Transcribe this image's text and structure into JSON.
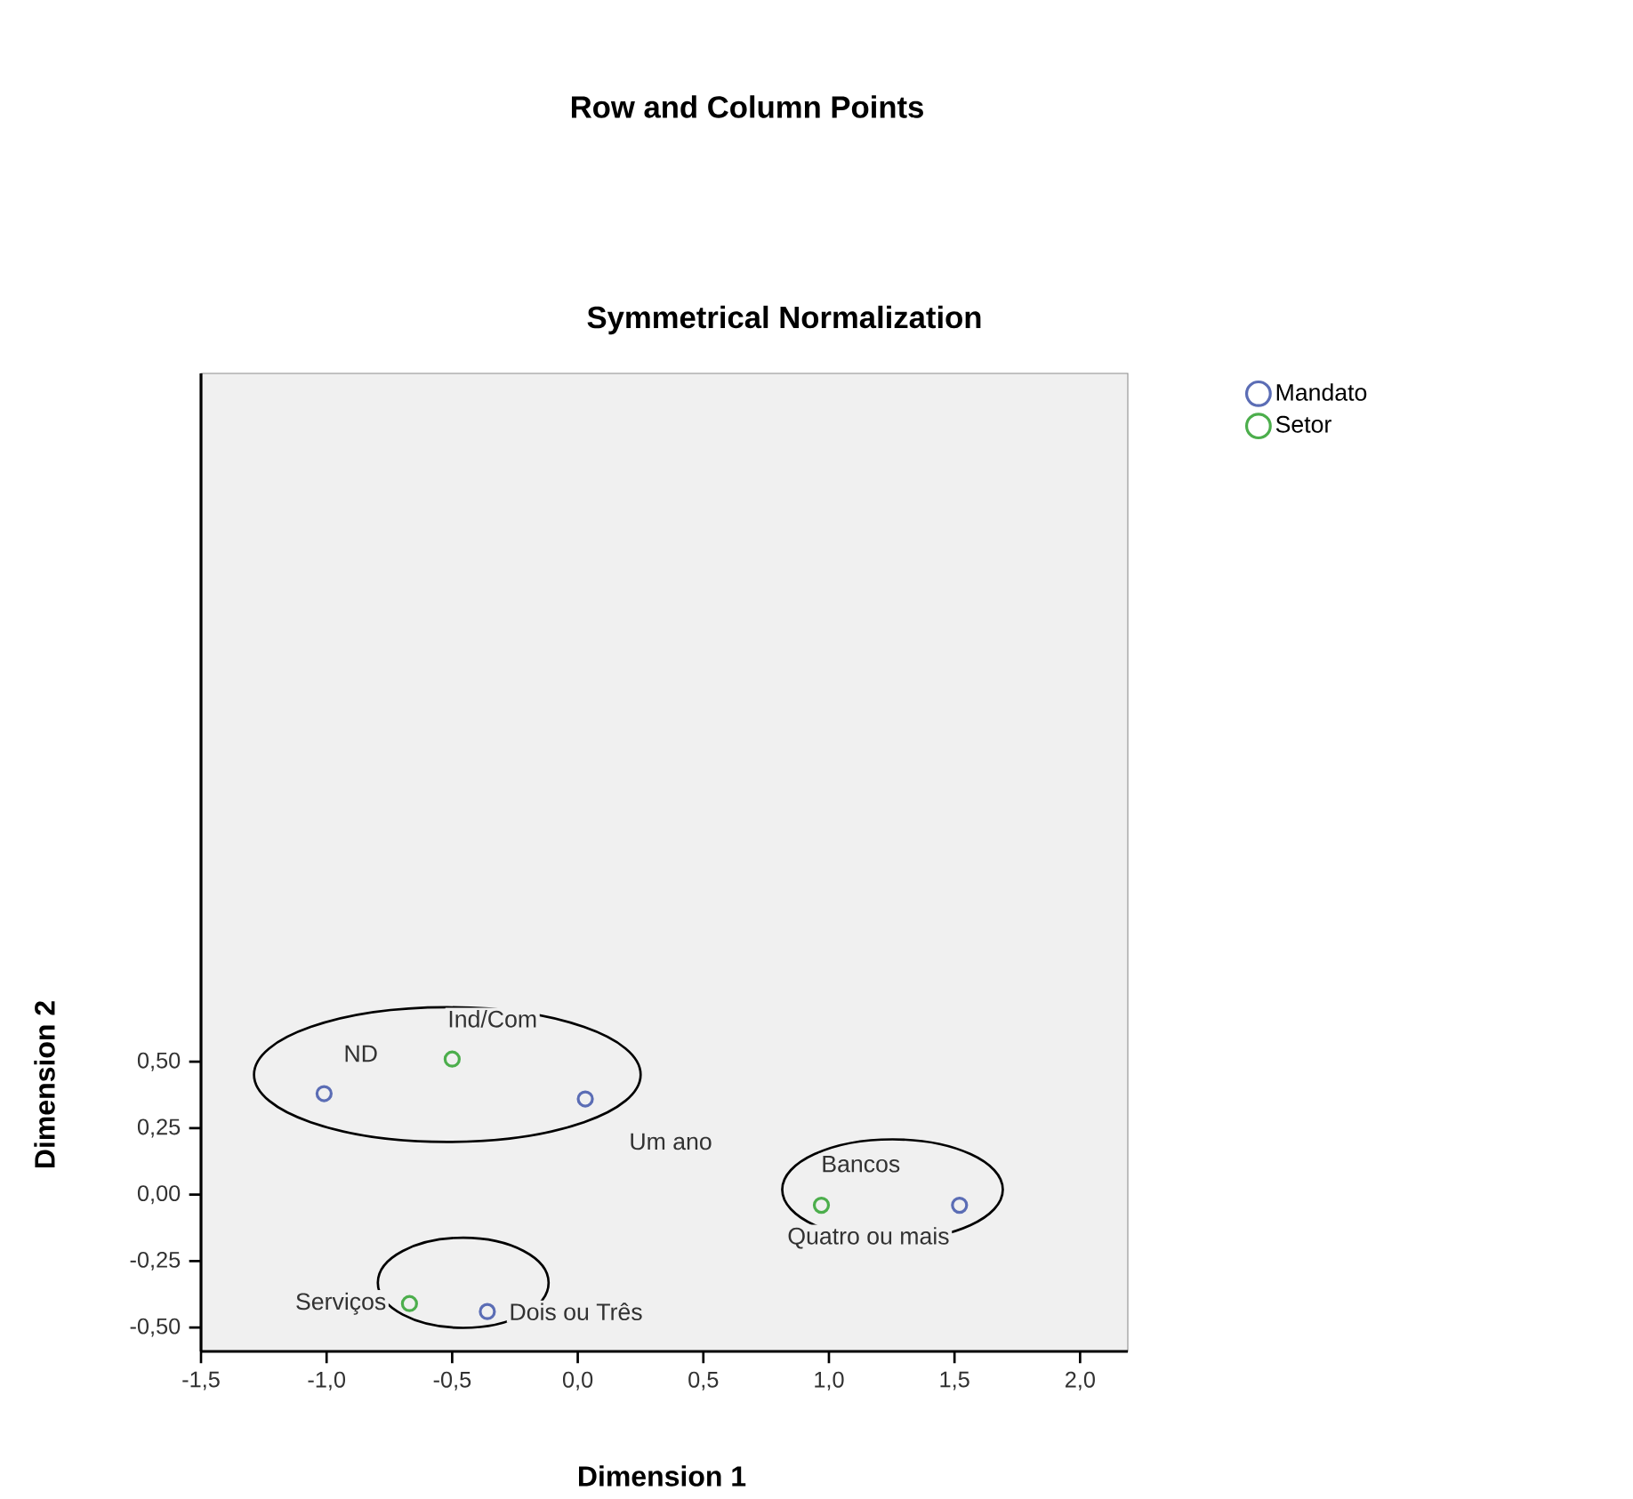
{
  "chart_data": {
    "type": "scatter",
    "title": "Row and Column Points",
    "subtitle": "Symmetrical Normalization",
    "xlabel": "Dimension 1",
    "ylabel": "Dimension 2",
    "xlim": [
      -1.5,
      2.19
    ],
    "ylim": [
      -0.59,
      3.09
    ],
    "xticks": [
      {
        "value": -1.5,
        "label": "-1,5"
      },
      {
        "value": -1.0,
        "label": "-1,0"
      },
      {
        "value": -0.5,
        "label": "-0,5"
      },
      {
        "value": 0.0,
        "label": "0,0"
      },
      {
        "value": 0.5,
        "label": "0,5"
      },
      {
        "value": 1.0,
        "label": "1,0"
      },
      {
        "value": 1.5,
        "label": "1,5"
      },
      {
        "value": 2.0,
        "label": "2,0"
      }
    ],
    "yticks": [
      {
        "value": -0.5,
        "label": "-0,50"
      },
      {
        "value": -0.25,
        "label": "-0,25"
      },
      {
        "value": 0.0,
        "label": "0,00"
      },
      {
        "value": 0.25,
        "label": "0,25"
      },
      {
        "value": 0.5,
        "label": "0,50"
      }
    ],
    "series": [
      {
        "name": "Mandato",
        "color": "#5b6db5",
        "x": [
          -1.01,
          0.03,
          -0.36,
          1.52
        ],
        "values": [
          0.38,
          0.36,
          -0.44,
          -0.04
        ]
      },
      {
        "name": "Setor",
        "color": "#4cae4c",
        "x": [
          -0.5,
          0.97,
          -0.67
        ],
        "values": [
          0.51,
          -0.04,
          -0.41
        ]
      }
    ],
    "annotations": [
      {
        "text": "ND",
        "x": -1.01,
        "y": 0.38
      },
      {
        "text": "Ind/Com",
        "x": -0.5,
        "y": 0.51
      },
      {
        "text": "Um ano",
        "x": 0.03,
        "y": 0.36
      },
      {
        "text": "Bancos",
        "x": 0.97,
        "y": -0.04
      },
      {
        "text": "Quatro ou mais",
        "x": 1.52,
        "y": -0.04
      },
      {
        "text": "Serviços",
        "x": -0.67,
        "y": -0.41
      },
      {
        "text": "Dois ou Três",
        "x": -0.36,
        "y": -0.44
      }
    ],
    "marker": "circle",
    "grid": false,
    "legend": "top right"
  }
}
